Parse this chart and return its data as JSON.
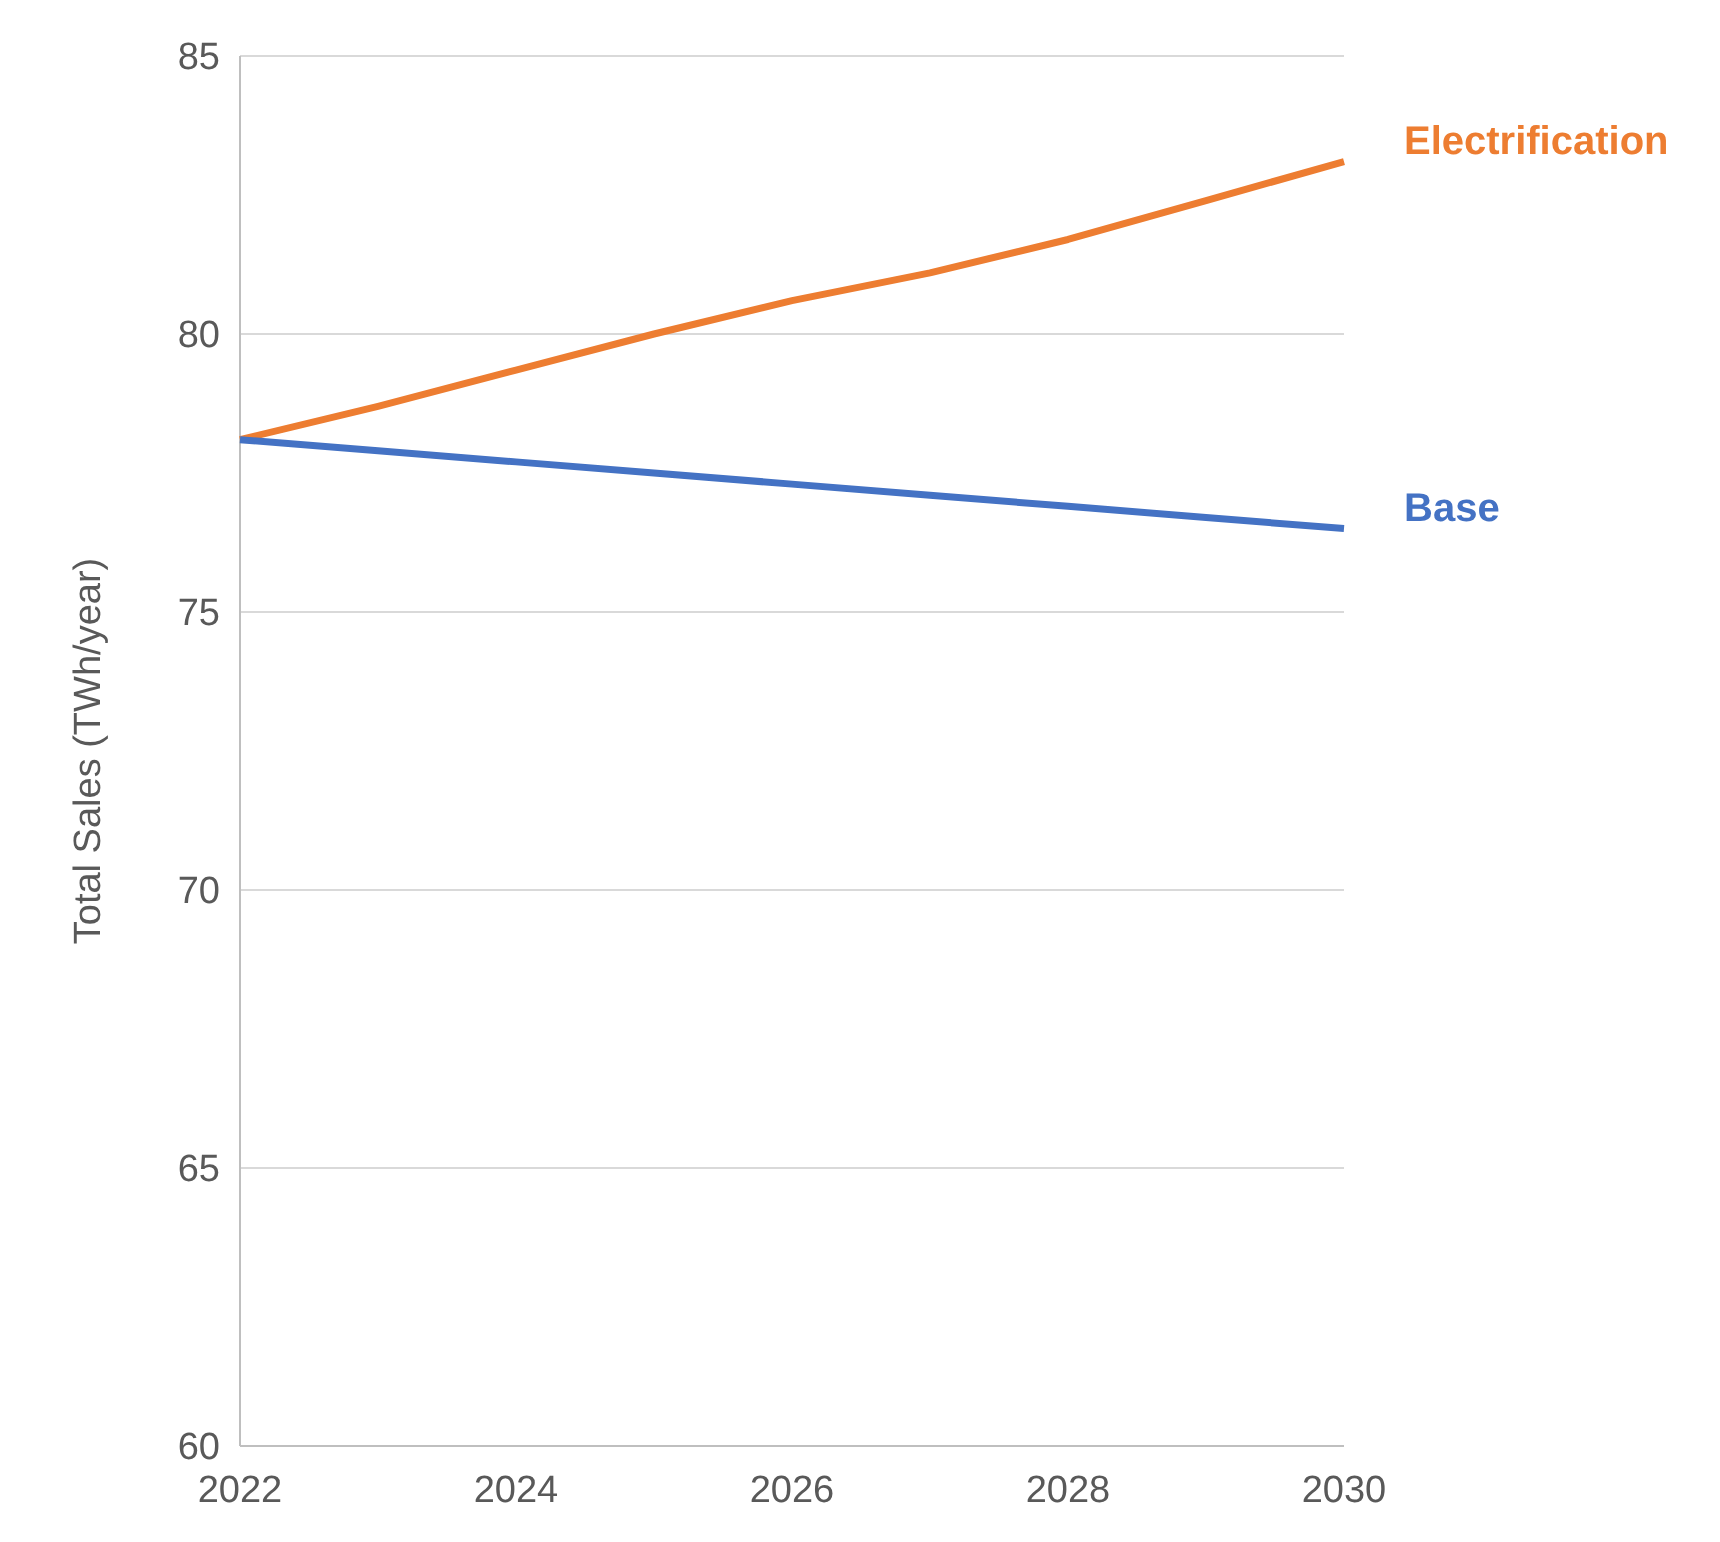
{
  "chart_data": {
    "type": "line",
    "ylabel": "Total Sales (TWh/year)",
    "x": [
      2022,
      2023,
      2024,
      2025,
      2026,
      2027,
      2028,
      2029,
      2030
    ],
    "series": [
      {
        "name": "Electrification",
        "color": "#ed7d31",
        "values": [
          78.1,
          78.7,
          79.35,
          80.0,
          80.6,
          81.1,
          81.7,
          82.4,
          83.1
        ]
      },
      {
        "name": "Base",
        "color": "#4472c4",
        "values": [
          78.1,
          77.9,
          77.7,
          77.5,
          77.3,
          77.1,
          76.9,
          76.7,
          76.5
        ]
      }
    ],
    "xlim": [
      2022,
      2030
    ],
    "xticks": [
      2022,
      2024,
      2026,
      2028,
      2030
    ],
    "ylim": [
      60,
      85
    ],
    "yticks": [
      60,
      65,
      70,
      75,
      80,
      85
    ],
    "grid": "y",
    "marker": "none",
    "line_style": "solid"
  }
}
